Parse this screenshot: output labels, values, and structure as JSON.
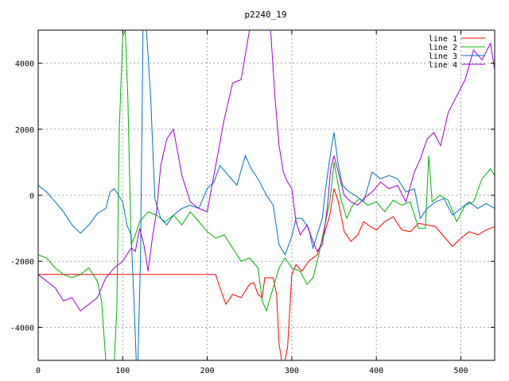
{
  "chart_data": {
    "type": "line",
    "title": "p2240_19",
    "xlabel": "",
    "ylabel": "",
    "xlim": [
      0,
      540
    ],
    "ylim": [
      -5000,
      5000
    ],
    "x_ticks": [
      0,
      100,
      200,
      300,
      400,
      500
    ],
    "y_ticks": [
      -4000,
      -2000,
      0,
      2000,
      4000
    ],
    "grid": true,
    "legend_position": "top-right",
    "series": [
      {
        "name": "line 1",
        "color": "#ff0000",
        "points": [
          [
            0,
            -2400
          ],
          [
            50,
            -2400
          ],
          [
            100,
            -2400
          ],
          [
            150,
            -2400
          ],
          [
            200,
            -2400
          ],
          [
            210,
            -2400
          ],
          [
            215,
            -2800
          ],
          [
            222,
            -3300
          ],
          [
            230,
            -3000
          ],
          [
            240,
            -3100
          ],
          [
            250,
            -2700
          ],
          [
            255,
            -2650
          ],
          [
            260,
            -3000
          ],
          [
            265,
            -3100
          ],
          [
            268,
            -2500
          ],
          [
            278,
            -2500
          ],
          [
            282,
            -3000
          ],
          [
            285,
            -4500
          ],
          [
            288,
            -5000
          ],
          [
            292,
            -5000
          ],
          [
            295,
            -4600
          ],
          [
            300,
            -2400
          ],
          [
            305,
            -2100
          ],
          [
            312,
            -2300
          ],
          [
            320,
            -2000
          ],
          [
            330,
            -1800
          ],
          [
            338,
            -1200
          ],
          [
            345,
            -600
          ],
          [
            350,
            200
          ],
          [
            355,
            -200
          ],
          [
            362,
            -1100
          ],
          [
            370,
            -1400
          ],
          [
            378,
            -1200
          ],
          [
            385,
            -800
          ],
          [
            393,
            -950
          ],
          [
            400,
            -1050
          ],
          [
            410,
            -800
          ],
          [
            420,
            -650
          ],
          [
            430,
            -1050
          ],
          [
            440,
            -1100
          ],
          [
            450,
            -850
          ],
          [
            460,
            -900
          ],
          [
            470,
            -950
          ],
          [
            480,
            -1250
          ],
          [
            490,
            -1550
          ],
          [
            500,
            -1300
          ],
          [
            510,
            -1100
          ],
          [
            520,
            -1200
          ],
          [
            530,
            -1050
          ],
          [
            540,
            -950
          ]
        ]
      },
      {
        "name": "line 2",
        "color": "#00b000",
        "points": [
          [
            0,
            -1800
          ],
          [
            10,
            -1900
          ],
          [
            20,
            -2200
          ],
          [
            30,
            -2400
          ],
          [
            40,
            -2500
          ],
          [
            50,
            -2400
          ],
          [
            60,
            -2200
          ],
          [
            70,
            -2600
          ],
          [
            75,
            -3200
          ],
          [
            80,
            -5000
          ],
          [
            85,
            -5000
          ],
          [
            90,
            -5000
          ],
          [
            93,
            -3500
          ],
          [
            96,
            2000
          ],
          [
            100,
            4800
          ],
          [
            103,
            5000
          ],
          [
            106,
            3000
          ],
          [
            110,
            -1500
          ],
          [
            115,
            -1200
          ],
          [
            120,
            -800
          ],
          [
            130,
            -500
          ],
          [
            140,
            -600
          ],
          [
            150,
            -800
          ],
          [
            160,
            -600
          ],
          [
            170,
            -900
          ],
          [
            180,
            -500
          ],
          [
            190,
            -800
          ],
          [
            200,
            -1100
          ],
          [
            210,
            -1300
          ],
          [
            220,
            -1200
          ],
          [
            230,
            -1600
          ],
          [
            240,
            -2000
          ],
          [
            250,
            -1900
          ],
          [
            260,
            -2200
          ],
          [
            265,
            -3200
          ],
          [
            270,
            -3500
          ],
          [
            278,
            -2800
          ],
          [
            285,
            -2200
          ],
          [
            292,
            -1900
          ],
          [
            300,
            -2200
          ],
          [
            310,
            -2300
          ],
          [
            318,
            -2700
          ],
          [
            325,
            -2500
          ],
          [
            332,
            -1800
          ],
          [
            340,
            -800
          ],
          [
            345,
            -200
          ],
          [
            350,
            1000
          ],
          [
            358,
            -100
          ],
          [
            365,
            -700
          ],
          [
            372,
            -300
          ],
          [
            380,
            -100
          ],
          [
            390,
            -300
          ],
          [
            400,
            -200
          ],
          [
            410,
            -500
          ],
          [
            420,
            -150
          ],
          [
            430,
            -300
          ],
          [
            440,
            -200
          ],
          [
            450,
            -1000
          ],
          [
            458,
            -1000
          ],
          [
            462,
            1200
          ],
          [
            466,
            -200
          ],
          [
            475,
            0
          ],
          [
            485,
            -150
          ],
          [
            495,
            -800
          ],
          [
            505,
            -300
          ],
          [
            515,
            -200
          ],
          [
            525,
            500
          ],
          [
            535,
            800
          ],
          [
            540,
            600
          ]
        ]
      },
      {
        "name": "line 3",
        "color": "#0070c0",
        "points": [
          [
            0,
            300
          ],
          [
            10,
            100
          ],
          [
            20,
            -200
          ],
          [
            30,
            -500
          ],
          [
            40,
            -900
          ],
          [
            50,
            -1150
          ],
          [
            60,
            -900
          ],
          [
            70,
            -550
          ],
          [
            80,
            -400
          ],
          [
            85,
            100
          ],
          [
            90,
            200
          ],
          [
            95,
            0
          ],
          [
            100,
            -200
          ],
          [
            105,
            -900
          ],
          [
            110,
            -1200
          ],
          [
            113,
            -3000
          ],
          [
            116,
            -5000
          ],
          [
            118,
            -5000
          ],
          [
            121,
            -2000
          ],
          [
            124,
            5000
          ],
          [
            128,
            5000
          ],
          [
            133,
            3000
          ],
          [
            138,
            -100
          ],
          [
            145,
            -700
          ],
          [
            152,
            -900
          ],
          [
            160,
            -600
          ],
          [
            170,
            -400
          ],
          [
            180,
            -300
          ],
          [
            190,
            -400
          ],
          [
            200,
            200
          ],
          [
            208,
            400
          ],
          [
            215,
            900
          ],
          [
            225,
            600
          ],
          [
            235,
            300
          ],
          [
            245,
            1200
          ],
          [
            252,
            800
          ],
          [
            260,
            500
          ],
          [
            270,
            0
          ],
          [
            278,
            -300
          ],
          [
            285,
            -1500
          ],
          [
            292,
            -1800
          ],
          [
            300,
            -1250
          ],
          [
            305,
            -700
          ],
          [
            312,
            -700
          ],
          [
            320,
            -1000
          ],
          [
            325,
            -1600
          ],
          [
            330,
            -1200
          ],
          [
            336,
            -700
          ],
          [
            340,
            200
          ],
          [
            346,
            1300
          ],
          [
            350,
            1900
          ],
          [
            355,
            900
          ],
          [
            360,
            300
          ],
          [
            368,
            100
          ],
          [
            375,
            0
          ],
          [
            385,
            -200
          ],
          [
            395,
            700
          ],
          [
            405,
            500
          ],
          [
            415,
            600
          ],
          [
            425,
            500
          ],
          [
            435,
            100
          ],
          [
            445,
            200
          ],
          [
            452,
            -700
          ],
          [
            460,
            -400
          ],
          [
            470,
            -200
          ],
          [
            480,
            -100
          ],
          [
            490,
            -600
          ],
          [
            500,
            -400
          ],
          [
            510,
            -200
          ],
          [
            520,
            -400
          ],
          [
            530,
            -250
          ],
          [
            540,
            -400
          ]
        ]
      },
      {
        "name": "line 4",
        "color": "#a000d0",
        "points": [
          [
            0,
            -2400
          ],
          [
            10,
            -2600
          ],
          [
            20,
            -2800
          ],
          [
            30,
            -3200
          ],
          [
            40,
            -3100
          ],
          [
            50,
            -3500
          ],
          [
            60,
            -3300
          ],
          [
            70,
            -3100
          ],
          [
            80,
            -2500
          ],
          [
            90,
            -2200
          ],
          [
            100,
            -2000
          ],
          [
            110,
            -1600
          ],
          [
            115,
            -1700
          ],
          [
            120,
            -1000
          ],
          [
            125,
            -1500
          ],
          [
            130,
            -2300
          ],
          [
            135,
            -1300
          ],
          [
            140,
            -500
          ],
          [
            145,
            900
          ],
          [
            152,
            1700
          ],
          [
            160,
            2000
          ],
          [
            170,
            600
          ],
          [
            180,
            -200
          ],
          [
            190,
            -400
          ],
          [
            200,
            -500
          ],
          [
            210,
            900
          ],
          [
            220,
            2300
          ],
          [
            230,
            3400
          ],
          [
            240,
            3500
          ],
          [
            250,
            5000
          ],
          [
            255,
            5000
          ],
          [
            265,
            5000
          ],
          [
            275,
            5000
          ],
          [
            280,
            3000
          ],
          [
            285,
            1500
          ],
          [
            290,
            700
          ],
          [
            295,
            400
          ],
          [
            300,
            200
          ],
          [
            305,
            -800
          ],
          [
            310,
            -1200
          ],
          [
            318,
            -900
          ],
          [
            325,
            -1400
          ],
          [
            330,
            -1700
          ],
          [
            336,
            -1500
          ],
          [
            342,
            -400
          ],
          [
            346,
            800
          ],
          [
            350,
            1200
          ],
          [
            356,
            600
          ],
          [
            362,
            0
          ],
          [
            370,
            -200
          ],
          [
            378,
            -300
          ],
          [
            385,
            -100
          ],
          [
            395,
            100
          ],
          [
            405,
            400
          ],
          [
            415,
            200
          ],
          [
            425,
            300
          ],
          [
            435,
            -200
          ],
          [
            445,
            700
          ],
          [
            452,
            1100
          ],
          [
            460,
            1700
          ],
          [
            468,
            1900
          ],
          [
            476,
            1500
          ],
          [
            485,
            2500
          ],
          [
            495,
            3000
          ],
          [
            505,
            3500
          ],
          [
            515,
            4400
          ],
          [
            525,
            4100
          ],
          [
            535,
            4600
          ],
          [
            540,
            3800
          ]
        ]
      }
    ]
  }
}
